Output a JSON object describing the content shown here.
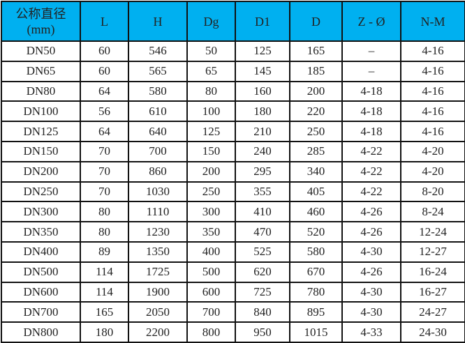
{
  "header_color": "#00b0f0",
  "columns": [
    "公称直径\n(mm)",
    "L",
    "H",
    "Dg",
    "D1",
    "D",
    "Z - Ø",
    "N-M"
  ],
  "header_first": {
    "line1": "公称直径",
    "line2": "(mm)"
  },
  "rows": [
    [
      "DN50",
      "60",
      "546",
      "50",
      "125",
      "165",
      "–",
      "4-16"
    ],
    [
      "DN65",
      "60",
      "565",
      "65",
      "145",
      "185",
      "–",
      "4-16"
    ],
    [
      "DN80",
      "64",
      "580",
      "80",
      "160",
      "200",
      "4-18",
      "4-16"
    ],
    [
      "DN100",
      "56",
      "610",
      "100",
      "180",
      "220",
      "4-18",
      "4-16"
    ],
    [
      "DN125",
      "64",
      "640",
      "125",
      "210",
      "250",
      "4-18",
      "4-16"
    ],
    [
      "DN150",
      "70",
      "700",
      "150",
      "240",
      "285",
      "4-22",
      "4-20"
    ],
    [
      "DN200",
      "70",
      "860",
      "200",
      "295",
      "340",
      "4-22",
      "4-20"
    ],
    [
      "DN250",
      "70",
      "1030",
      "250",
      "355",
      "405",
      "4-22",
      "8-20"
    ],
    [
      "DN300",
      "80",
      "1110",
      "300",
      "410",
      "460",
      "4-26",
      "8-24"
    ],
    [
      "DN350",
      "80",
      "1230",
      "350",
      "470",
      "520",
      "4-26",
      "12-24"
    ],
    [
      "DN400",
      "89",
      "1350",
      "400",
      "525",
      "580",
      "4-30",
      "12-27"
    ],
    [
      "DN500",
      "114",
      "1725",
      "500",
      "620",
      "670",
      "4-26",
      "16-24"
    ],
    [
      "DN600",
      "114",
      "1900",
      "600",
      "725",
      "780",
      "4-30",
      "16-27"
    ],
    [
      "DN700",
      "165",
      "2050",
      "700",
      "840",
      "895",
      "4-30",
      "24-27"
    ],
    [
      "DN800",
      "180",
      "2200",
      "800",
      "950",
      "1015",
      "4-33",
      "24-30"
    ]
  ]
}
